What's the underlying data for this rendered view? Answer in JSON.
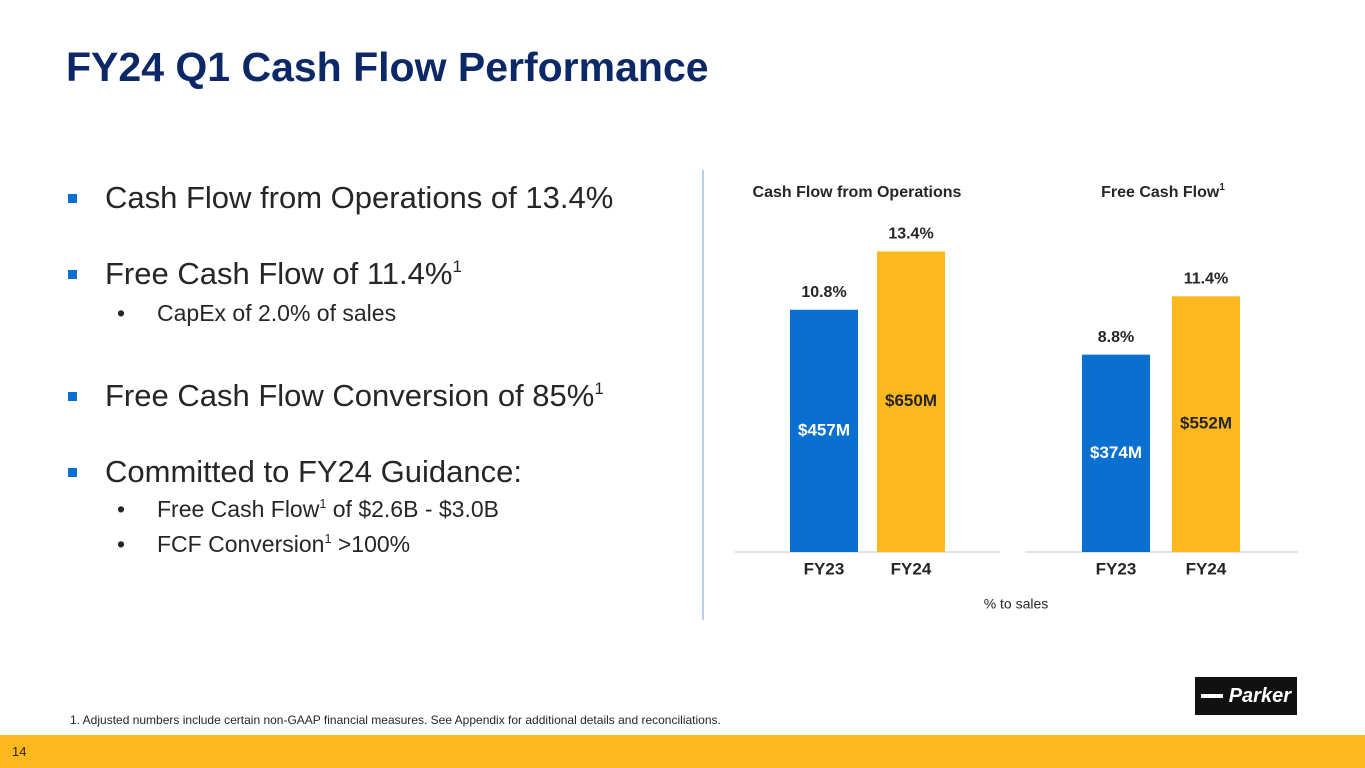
{
  "title": "FY24 Q1 Cash Flow Performance",
  "bullets": [
    {
      "level": 1,
      "parts": [
        {
          "text": "Cash Flow from Operations of 13.4%"
        }
      ]
    },
    {
      "level": 1,
      "parts": [
        {
          "text": "Free Cash Flow of 11.4%"
        },
        {
          "text": "1",
          "sup": true
        }
      ]
    },
    {
      "level": 2,
      "parts": [
        {
          "text": "CapEx of 2.0% of sales"
        }
      ]
    },
    {
      "level": 1,
      "parts": [
        {
          "text": "Free Cash Flow Conversion of 85%"
        },
        {
          "text": "1",
          "sup": true
        }
      ]
    },
    {
      "level": 1,
      "parts": [
        {
          "text": "Committed to FY24 Guidance:"
        }
      ]
    },
    {
      "level": 2,
      "parts": [
        {
          "text": "Free Cash Flow"
        },
        {
          "text": "1",
          "sup": true
        },
        {
          "text": " of $2.6B - $3.0B"
        }
      ]
    },
    {
      "level": 2,
      "parts": [
        {
          "text": "FCF Conversion"
        },
        {
          "text": "1",
          "sup": true
        },
        {
          "text": " >100%"
        }
      ]
    }
  ],
  "chart_note": "% to sales",
  "footnote": "1. Adjusted numbers include certain non-GAAP financial measures. See Appendix for additional details and reconciliations.",
  "page_number": "14",
  "logo": "Parker",
  "chart_data": [
    {
      "type": "bar",
      "title": "Cash Flow from Operations",
      "categories": [
        "FY23",
        "FY24"
      ],
      "values": [
        10.8,
        13.4
      ],
      "value_labels": [
        "10.8%",
        "13.4%"
      ],
      "amount_labels": [
        "$457M",
        "$650M"
      ],
      "colors": [
        "#0a70d0",
        "#fdb71f"
      ],
      "ylim": [
        0,
        14
      ]
    },
    {
      "type": "bar",
      "title": "Free Cash Flow",
      "title_note": "1",
      "categories": [
        "FY23",
        "FY24"
      ],
      "values": [
        8.8,
        11.4
      ],
      "value_labels": [
        "8.8%",
        "11.4%"
      ],
      "amount_labels": [
        "$374M",
        "$552M"
      ],
      "colors": [
        "#0a70d0",
        "#fdb71f"
      ],
      "ylim": [
        0,
        14
      ]
    }
  ]
}
